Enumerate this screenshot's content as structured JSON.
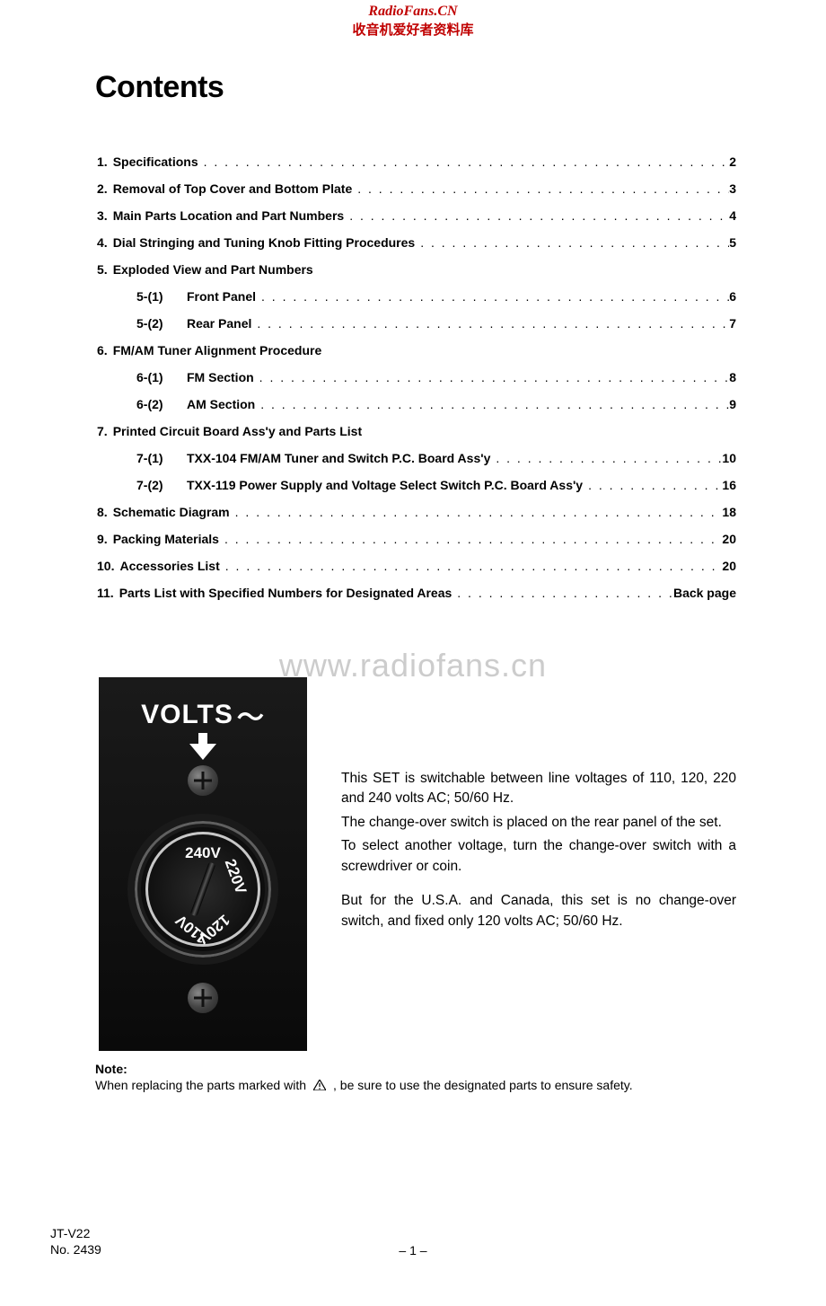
{
  "watermark": {
    "top_line1": "RadioFans.CN",
    "top_line2": "收音机爱好者资料库",
    "center": "www.radiofans.cn"
  },
  "title": "Contents",
  "toc": [
    {
      "num": "1.",
      "label": "Specifications",
      "page": "2"
    },
    {
      "num": "2.",
      "label": "Removal of Top Cover and Bottom Plate",
      "page": "3"
    },
    {
      "num": "3.",
      "label": "Main Parts Location and Part Numbers",
      "page": "4"
    },
    {
      "num": "4.",
      "label": "Dial Stringing and Tuning Knob Fitting Procedures",
      "page": "5"
    },
    {
      "num": "5.",
      "label": "Exploded View and Part Numbers",
      "page": ""
    },
    {
      "sub": true,
      "num": "5-(1)",
      "label": "Front Panel",
      "page": "6"
    },
    {
      "sub": true,
      "num": "5-(2)",
      "label": "Rear Panel",
      "page": "7"
    },
    {
      "num": "6.",
      "label": "FM/AM Tuner Alignment Procedure",
      "page": ""
    },
    {
      "sub": true,
      "num": "6-(1)",
      "label": "FM Section",
      "page": "8"
    },
    {
      "sub": true,
      "num": "6-(2)",
      "label": "AM Section",
      "page": "9"
    },
    {
      "num": "7.",
      "label": "Printed Circuit Board Ass'y and Parts List",
      "page": ""
    },
    {
      "sub": true,
      "num": "7-(1)",
      "label": "TXX-104 FM/AM Tuner and Switch P.C. Board Ass'y",
      "page": "10"
    },
    {
      "sub": true,
      "num": "7-(2)",
      "label": "TXX-119 Power Supply and Voltage Select Switch P.C. Board Ass'y",
      "page": "16"
    },
    {
      "num": "8.",
      "label": "Schematic Diagram",
      "page": "18"
    },
    {
      "num": "9.",
      "label": "Packing Materials",
      "page": "20"
    },
    {
      "num": "10.",
      "label": "Accessories List",
      "page": "20"
    },
    {
      "num": "11.",
      "label": "Parts List with Specified Numbers for Designated Areas",
      "page": "Back page"
    }
  ],
  "volts_panel": {
    "label": "VOLTS",
    "tilde": "〜",
    "v240": "240V",
    "v220": "220V",
    "v120": "120V",
    "v110": "110V"
  },
  "description": {
    "p1": "This SET is switchable between line voltages of 110, 120, 220 and 240 volts AC; 50/60 Hz.",
    "p2": "The change-over switch is placed on the rear panel of the set.",
    "p3": "To select another voltage, turn the change-over switch with a screwdriver or coin.",
    "p4": "But for the U.S.A. and Canada, this set is no change-over switch, and fixed only 120 volts AC; 50/60 Hz."
  },
  "note": {
    "title": "Note:",
    "body_before": "When replacing the parts marked with",
    "body_after": ", be sure to use the designated parts to ensure safety."
  },
  "footer": {
    "model": "JT-V22",
    "docnum": "No. 2439",
    "page": "– 1 –"
  }
}
